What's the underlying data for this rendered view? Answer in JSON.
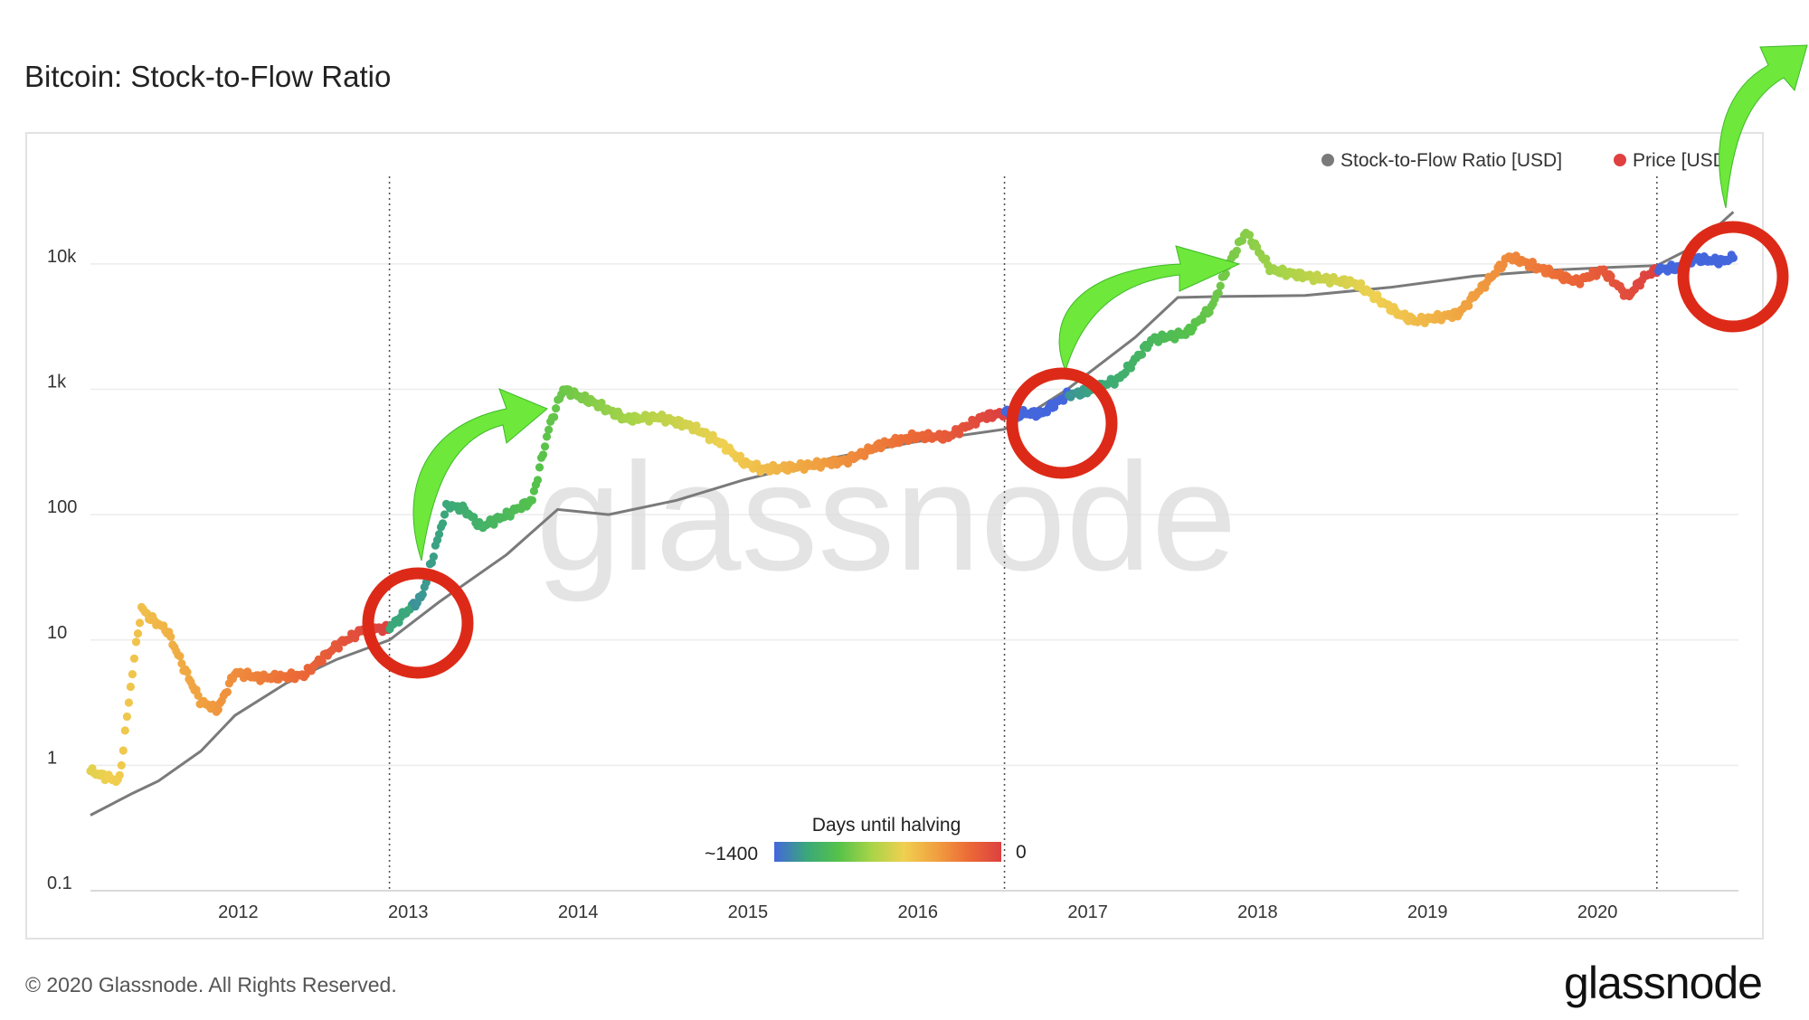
{
  "title": "Bitcoin: Stock-to-Flow Ratio",
  "footer": "© 2020 Glassnode. All Rights Reserved.",
  "brand": "glassnode",
  "watermark": "glassnode",
  "colorbar": {
    "title": "Days until halving",
    "left_label": "~1400",
    "right_label": "0",
    "colors": [
      "#4466dd",
      "#3aa87a",
      "#56c24a",
      "#a8d448",
      "#f0d050",
      "#f0a040",
      "#ec6a36",
      "#dc4040"
    ]
  },
  "legend": [
    {
      "label": "Stock-to-Flow Ratio [USD]",
      "color": "#7a7a7a"
    },
    {
      "label": "Price [USD]",
      "color": "#e04040"
    }
  ],
  "annotation_colors": {
    "circle": "#dd2a18",
    "arrow": "#6ee83a",
    "arrow_dark": "#3fb82a"
  },
  "chart_data": {
    "type": "scatter",
    "title": "Bitcoin: Stock-to-Flow Ratio",
    "yscale": "log",
    "ylim": [
      0.1,
      50000
    ],
    "xlim": [
      2011.15,
      2020.85
    ],
    "y_ticks": [
      {
        "value": 0.1,
        "label": "0.1"
      },
      {
        "value": 1,
        "label": "1"
      },
      {
        "value": 10,
        "label": "10"
      },
      {
        "value": 100,
        "label": "100"
      },
      {
        "value": 1000,
        "label": "1k"
      },
      {
        "value": 10000,
        "label": "10k"
      }
    ],
    "x_ticks": [
      {
        "value": 2012,
        "label": "2012"
      },
      {
        "value": 2013,
        "label": "2013"
      },
      {
        "value": 2014,
        "label": "2014"
      },
      {
        "value": 2015,
        "label": "2015"
      },
      {
        "value": 2016,
        "label": "2016"
      },
      {
        "value": 2017,
        "label": "2017"
      },
      {
        "value": 2018,
        "label": "2018"
      },
      {
        "value": 2019,
        "label": "2019"
      },
      {
        "value": 2020,
        "label": "2020"
      }
    ],
    "grid": true,
    "legend_position": "top-right",
    "halvings": [
      2012.91,
      2016.53,
      2020.37
    ],
    "series": [
      {
        "name": "Stock-to-Flow Ratio [USD]",
        "color": "#7a7a7a",
        "points": [
          [
            2011.15,
            0.4
          ],
          [
            2011.4,
            0.6
          ],
          [
            2011.55,
            0.75
          ],
          [
            2011.8,
            1.3
          ],
          [
            2012.0,
            2.5
          ],
          [
            2012.3,
            4.5
          ],
          [
            2012.6,
            7
          ],
          [
            2012.91,
            10
          ],
          [
            2013.2,
            20
          ],
          [
            2013.6,
            48
          ],
          [
            2013.9,
            110
          ],
          [
            2014.2,
            100
          ],
          [
            2014.6,
            130
          ],
          [
            2015.0,
            190
          ],
          [
            2015.5,
            280
          ],
          [
            2016.0,
            380
          ],
          [
            2016.53,
            480
          ],
          [
            2016.9,
            1000
          ],
          [
            2017.3,
            2600
          ],
          [
            2017.55,
            5400
          ],
          [
            2017.8,
            5500
          ],
          [
            2018.3,
            5600
          ],
          [
            2018.8,
            6500
          ],
          [
            2019.3,
            8000
          ],
          [
            2019.8,
            9000
          ],
          [
            2020.1,
            9400
          ],
          [
            2020.37,
            9700
          ],
          [
            2020.6,
            14000
          ],
          [
            2020.82,
            26000
          ]
        ]
      },
      {
        "name": "Price [USD]",
        "color": "#e04040",
        "points": [
          [
            2011.15,
            0.9
          ],
          [
            2011.25,
            0.8
          ],
          [
            2011.32,
            0.75
          ],
          [
            2011.4,
            6
          ],
          [
            2011.45,
            18
          ],
          [
            2011.5,
            15
          ],
          [
            2011.6,
            12
          ],
          [
            2011.7,
            6
          ],
          [
            2011.8,
            3.2
          ],
          [
            2011.9,
            2.8
          ],
          [
            2012.0,
            5.5
          ],
          [
            2012.15,
            5
          ],
          [
            2012.4,
            5.2
          ],
          [
            2012.6,
            9
          ],
          [
            2012.75,
            12
          ],
          [
            2012.91,
            12.5
          ],
          [
            2013.1,
            22
          ],
          [
            2013.25,
            120
          ],
          [
            2013.35,
            110
          ],
          [
            2013.45,
            80
          ],
          [
            2013.6,
            100
          ],
          [
            2013.75,
            130
          ],
          [
            2013.85,
            500
          ],
          [
            2013.93,
            1000
          ],
          [
            2014.1,
            800
          ],
          [
            2014.3,
            580
          ],
          [
            2014.5,
            600
          ],
          [
            2014.7,
            500
          ],
          [
            2014.85,
            380
          ],
          [
            2015.0,
            260
          ],
          [
            2015.1,
            230
          ],
          [
            2015.3,
            240
          ],
          [
            2015.6,
            270
          ],
          [
            2015.8,
            360
          ],
          [
            2016.0,
            420
          ],
          [
            2016.2,
            420
          ],
          [
            2016.4,
            600
          ],
          [
            2016.53,
            650
          ],
          [
            2016.75,
            640
          ],
          [
            2016.9,
            900
          ],
          [
            2017.0,
            950
          ],
          [
            2017.2,
            1200
          ],
          [
            2017.4,
            2500
          ],
          [
            2017.6,
            2800
          ],
          [
            2017.75,
            4500
          ],
          [
            2017.85,
            10000
          ],
          [
            2017.95,
            18000
          ],
          [
            2018.1,
            9000
          ],
          [
            2018.3,
            8000
          ],
          [
            2018.6,
            7000
          ],
          [
            2018.85,
            4000
          ],
          [
            2018.95,
            3500
          ],
          [
            2019.2,
            4000
          ],
          [
            2019.4,
            8000
          ],
          [
            2019.5,
            11500
          ],
          [
            2019.7,
            9000
          ],
          [
            2019.9,
            7200
          ],
          [
            2020.05,
            9000
          ],
          [
            2020.2,
            5500
          ],
          [
            2020.3,
            8000
          ],
          [
            2020.37,
            9000
          ],
          [
            2020.5,
            9400
          ],
          [
            2020.6,
            11000
          ],
          [
            2020.75,
            10500
          ],
          [
            2020.82,
            11200
          ]
        ]
      }
    ]
  }
}
